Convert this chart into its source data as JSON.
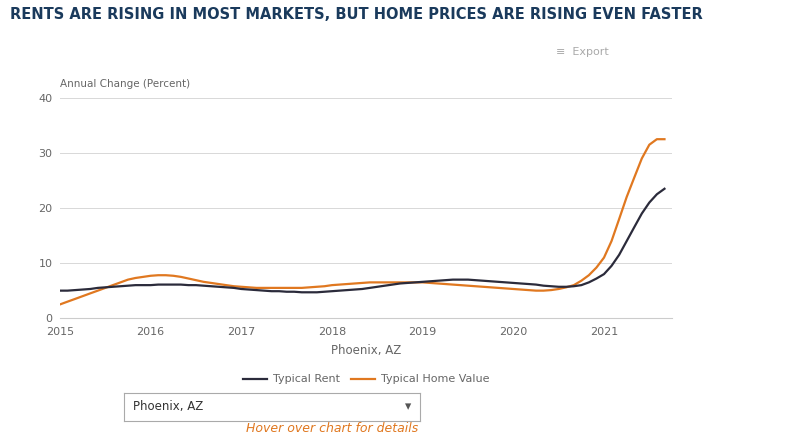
{
  "title": "RENTS ARE RISING IN MOST MARKETS, BUT HOME PRICES ARE RISING EVEN FASTER",
  "ylabel": "Annual Change (Percent)",
  "xlabel": "Phoenix, AZ",
  "export_label": "≡  Export",
  "legend_rent": "Typical Rent",
  "legend_home": "Typical Home Value",
  "dropdown_label": "Phoenix, AZ",
  "hover_text": "Hover over chart for details",
  "background_color": "#ffffff",
  "title_color": "#1a3a5c",
  "axis_color": "#666666",
  "rent_color": "#2b2b3b",
  "home_color": "#e07820",
  "hover_color": "#e07820",
  "ylim": [
    0,
    40
  ],
  "yticks": [
    0,
    10,
    20,
    30,
    40
  ],
  "xlim_start": 2015.0,
  "xlim_end": 2021.75,
  "rent_x": [
    2015.0,
    2015.083,
    2015.167,
    2015.25,
    2015.333,
    2015.417,
    2015.5,
    2015.583,
    2015.667,
    2015.75,
    2015.833,
    2015.917,
    2016.0,
    2016.083,
    2016.167,
    2016.25,
    2016.333,
    2016.417,
    2016.5,
    2016.583,
    2016.667,
    2016.75,
    2016.833,
    2016.917,
    2017.0,
    2017.083,
    2017.167,
    2017.25,
    2017.333,
    2017.417,
    2017.5,
    2017.583,
    2017.667,
    2017.75,
    2017.833,
    2017.917,
    2018.0,
    2018.083,
    2018.167,
    2018.25,
    2018.333,
    2018.417,
    2018.5,
    2018.583,
    2018.667,
    2018.75,
    2018.833,
    2018.917,
    2019.0,
    2019.083,
    2019.167,
    2019.25,
    2019.333,
    2019.417,
    2019.5,
    2019.583,
    2019.667,
    2019.75,
    2019.833,
    2019.917,
    2020.0,
    2020.083,
    2020.167,
    2020.25,
    2020.333,
    2020.417,
    2020.5,
    2020.583,
    2020.667,
    2020.75,
    2020.833,
    2020.917,
    2021.0,
    2021.083,
    2021.167,
    2021.25,
    2021.333,
    2021.417,
    2021.5,
    2021.583,
    2021.667
  ],
  "rent_y": [
    5.0,
    5.0,
    5.1,
    5.2,
    5.3,
    5.5,
    5.6,
    5.7,
    5.8,
    5.9,
    6.0,
    6.0,
    6.0,
    6.1,
    6.1,
    6.1,
    6.1,
    6.0,
    6.0,
    5.9,
    5.8,
    5.7,
    5.6,
    5.5,
    5.3,
    5.2,
    5.1,
    5.0,
    4.9,
    4.9,
    4.8,
    4.8,
    4.7,
    4.7,
    4.7,
    4.8,
    4.9,
    5.0,
    5.1,
    5.2,
    5.3,
    5.5,
    5.7,
    5.9,
    6.1,
    6.3,
    6.4,
    6.5,
    6.6,
    6.7,
    6.8,
    6.9,
    7.0,
    7.0,
    7.0,
    6.9,
    6.8,
    6.7,
    6.6,
    6.5,
    6.4,
    6.3,
    6.2,
    6.1,
    5.9,
    5.8,
    5.7,
    5.7,
    5.8,
    6.0,
    6.5,
    7.2,
    8.0,
    9.5,
    11.5,
    14.0,
    16.5,
    19.0,
    21.0,
    22.5,
    23.5
  ],
  "home_x": [
    2015.0,
    2015.083,
    2015.167,
    2015.25,
    2015.333,
    2015.417,
    2015.5,
    2015.583,
    2015.667,
    2015.75,
    2015.833,
    2015.917,
    2016.0,
    2016.083,
    2016.167,
    2016.25,
    2016.333,
    2016.417,
    2016.5,
    2016.583,
    2016.667,
    2016.75,
    2016.833,
    2016.917,
    2017.0,
    2017.083,
    2017.167,
    2017.25,
    2017.333,
    2017.417,
    2017.5,
    2017.583,
    2017.667,
    2017.75,
    2017.833,
    2017.917,
    2018.0,
    2018.083,
    2018.167,
    2018.25,
    2018.333,
    2018.417,
    2018.5,
    2018.583,
    2018.667,
    2018.75,
    2018.833,
    2018.917,
    2019.0,
    2019.083,
    2019.167,
    2019.25,
    2019.333,
    2019.417,
    2019.5,
    2019.583,
    2019.667,
    2019.75,
    2019.833,
    2019.917,
    2020.0,
    2020.083,
    2020.167,
    2020.25,
    2020.333,
    2020.417,
    2020.5,
    2020.583,
    2020.667,
    2020.75,
    2020.833,
    2020.917,
    2021.0,
    2021.083,
    2021.167,
    2021.25,
    2021.333,
    2021.417,
    2021.5,
    2021.583,
    2021.667
  ],
  "home_y": [
    2.5,
    3.0,
    3.5,
    4.0,
    4.5,
    5.0,
    5.5,
    6.0,
    6.5,
    7.0,
    7.3,
    7.5,
    7.7,
    7.8,
    7.8,
    7.7,
    7.5,
    7.2,
    6.9,
    6.6,
    6.4,
    6.2,
    6.0,
    5.8,
    5.7,
    5.6,
    5.5,
    5.5,
    5.5,
    5.5,
    5.5,
    5.5,
    5.5,
    5.6,
    5.7,
    5.8,
    6.0,
    6.1,
    6.2,
    6.3,
    6.4,
    6.5,
    6.5,
    6.5,
    6.5,
    6.5,
    6.5,
    6.5,
    6.5,
    6.4,
    6.3,
    6.2,
    6.1,
    6.0,
    5.9,
    5.8,
    5.7,
    5.6,
    5.5,
    5.4,
    5.3,
    5.2,
    5.1,
    5.0,
    5.0,
    5.1,
    5.3,
    5.6,
    6.0,
    6.8,
    7.8,
    9.2,
    11.0,
    14.0,
    18.0,
    22.0,
    25.5,
    29.0,
    31.5,
    32.5,
    32.5
  ]
}
